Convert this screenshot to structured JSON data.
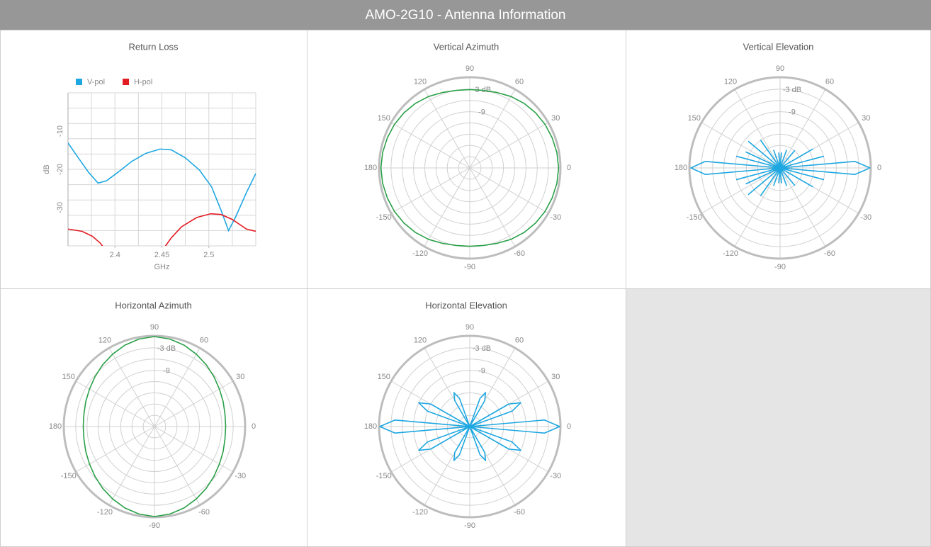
{
  "header": {
    "title": "AMO-2G10 - Antenna Information"
  },
  "chart_data": [
    {
      "type": "line",
      "title": "Return Loss",
      "xlabel": "GHz",
      "ylabel": "dB",
      "xlim": [
        2.35,
        2.55
      ],
      "ylim": [
        -40,
        0
      ],
      "xticks": [
        2.4,
        2.45,
        2.5
      ],
      "yticks": [
        -30,
        -20,
        -10
      ],
      "xgrid": [
        2.35,
        2.375,
        2.4,
        2.425,
        2.45,
        2.475,
        2.5,
        2.525,
        2.55
      ],
      "ygrid": [
        -40,
        -36,
        -32,
        -28,
        -24,
        -20,
        -16,
        -12,
        -8,
        -4,
        0
      ],
      "legend": "top-left",
      "series": [
        {
          "name": "V-pol",
          "color": "#1ea7e1",
          "x": [
            2.35,
            2.361,
            2.372,
            2.382,
            2.391,
            2.403,
            2.418,
            2.433,
            2.448,
            2.46,
            2.475,
            2.49,
            2.503,
            2.513,
            2.521,
            2.529,
            2.54,
            2.55
          ],
          "values": [
            -13.1,
            -17,
            -20.8,
            -23.6,
            -23,
            -20.8,
            -17.9,
            -15.8,
            -14.7,
            -14.9,
            -17,
            -20.2,
            -24.6,
            -30.7,
            -36,
            -32.2,
            -26.1,
            -21.1
          ]
        },
        {
          "name": "H-pol",
          "color": "#e31b23",
          "x": [
            2.35,
            2.365,
            2.376,
            2.384,
            2.39,
            2.42,
            2.451,
            2.46,
            2.471,
            2.487,
            2.502,
            2.513,
            2.525,
            2.54,
            2.55
          ],
          "values": [
            -35.6,
            -36.2,
            -37.5,
            -39.2,
            -41,
            null,
            -41,
            -37.9,
            -35,
            -32.6,
            -31.6,
            -31.8,
            -33.1,
            -35.6,
            -36.2
          ]
        }
      ]
    },
    {
      "type": "polar",
      "title": "Vertical Azimuth",
      "rlim": [
        -24,
        0
      ],
      "rticks": [
        {
          "value": -3,
          "label": "-3 dB"
        },
        -9
      ],
      "rgrid": [
        -21,
        -18,
        -15,
        -12,
        -9,
        -6,
        -3
      ],
      "angle_ticks": [
        0,
        30,
        60,
        90,
        120,
        150,
        180,
        -150,
        -120,
        -90,
        -60,
        -30
      ],
      "theta": [
        0,
        10,
        20,
        30,
        40,
        50,
        60,
        70,
        80,
        90,
        100,
        110,
        120,
        130,
        140,
        150,
        160,
        170,
        180,
        190,
        200,
        210,
        220,
        230,
        240,
        250,
        260,
        270,
        280,
        290,
        300,
        310,
        320,
        330,
        340,
        350,
        360
      ],
      "series": [
        {
          "color": "#2aa048",
          "values": [
            -0.3,
            -0.4,
            -0.6,
            -0.8,
            -1.1,
            -1.5,
            -2,
            -2.6,
            -3,
            -3.1,
            -3,
            -2.6,
            -2,
            -1.5,
            -1.1,
            -0.8,
            -0.6,
            -0.4,
            -0.3,
            -0.4,
            -0.6,
            -0.8,
            -1.1,
            -1.5,
            -2,
            -2.6,
            -3,
            -3.1,
            -3,
            -2.6,
            -2,
            -1.5,
            -1.1,
            -0.8,
            -0.6,
            -0.4,
            -0.3
          ]
        }
      ]
    },
    {
      "type": "polar",
      "title": "Vertical Elevation",
      "rlim": [
        -24,
        0
      ],
      "rticks": [
        {
          "value": -3,
          "label": "-3 dB"
        },
        -9
      ],
      "rgrid": [
        -21,
        -18,
        -15,
        -12,
        -9,
        -6,
        -3
      ],
      "angle_ticks": [
        0,
        30,
        60,
        90,
        120,
        150,
        180,
        -150,
        -120,
        -90,
        -60,
        -30
      ],
      "theta": [
        0,
        5,
        10,
        15,
        20,
        25,
        30,
        35,
        40,
        45,
        50,
        55,
        60,
        65,
        70,
        75,
        80,
        85,
        90,
        95,
        100,
        105,
        110,
        115,
        120,
        125,
        130,
        135,
        140,
        145,
        150,
        155,
        160,
        165,
        170,
        175,
        180,
        185,
        190,
        195,
        200,
        205,
        210,
        215,
        220,
        225,
        230,
        235,
        240,
        245,
        250,
        255,
        260,
        265,
        270,
        275,
        280,
        285,
        290,
        295,
        300,
        305,
        310,
        315,
        320,
        325,
        330,
        335,
        340,
        345,
        350,
        355,
        360
      ],
      "series": [
        {
          "color": "#1ea7e1",
          "values": [
            0,
            -4,
            -24,
            -12,
            -24,
            -24,
            -14,
            -24,
            -24,
            -24,
            -18,
            -24,
            -24,
            -24,
            -19,
            -24,
            -24,
            -20,
            -24,
            -20,
            -24,
            -24,
            -19,
            -24,
            -24,
            -15,
            -24,
            -24,
            -13,
            -24,
            -24,
            -14,
            -24,
            -12,
            -24,
            -4,
            -0.2,
            -4,
            -24,
            -12,
            -24,
            -14,
            -24,
            -24,
            -13,
            -24,
            -24,
            -15,
            -24,
            -24,
            -19,
            -24,
            -24,
            -20,
            -24,
            -20,
            -24,
            -24,
            -19,
            -24,
            -24,
            -24,
            -18,
            -24,
            -24,
            -24,
            -14,
            -24,
            -24,
            -12,
            -24,
            -4,
            0
          ]
        }
      ]
    },
    {
      "type": "polar",
      "title": "Horizontal Azimuth",
      "rlim": [
        -24,
        0
      ],
      "rticks": [
        {
          "value": -3,
          "label": "-3 dB"
        },
        -9
      ],
      "rgrid": [
        -21,
        -18,
        -15,
        -12,
        -9,
        -6,
        -3
      ],
      "angle_ticks": [
        0,
        30,
        60,
        90,
        120,
        150,
        180,
        -150,
        -120,
        -90,
        -60,
        -30
      ],
      "theta": [
        0,
        10,
        20,
        30,
        40,
        50,
        60,
        70,
        80,
        90,
        100,
        110,
        120,
        130,
        140,
        150,
        160,
        170,
        180,
        190,
        200,
        210,
        220,
        230,
        240,
        250,
        260,
        270,
        280,
        290,
        300,
        310,
        320,
        330,
        340,
        350,
        360
      ],
      "series": [
        {
          "color": "#2aa048",
          "values": [
            -5,
            -4.9,
            -4.5,
            -4,
            -3.3,
            -2.5,
            -1.7,
            -0.9,
            -0.3,
            0,
            -0.3,
            -0.9,
            -1.7,
            -2.5,
            -3.3,
            -4,
            -4.5,
            -4.9,
            -5,
            -4.9,
            -4.5,
            -4,
            -3.3,
            -2.5,
            -1.7,
            -0.9,
            -0.3,
            0,
            -0.3,
            -0.9,
            -1.7,
            -2.5,
            -3.3,
            -4,
            -4.5,
            -4.9,
            -5
          ]
        }
      ]
    },
    {
      "type": "polar",
      "title": "Horizontal Elevation",
      "rlim": [
        -24,
        0
      ],
      "rticks": [
        {
          "value": -3,
          "label": "-3 dB"
        },
        -9
      ],
      "rgrid": [
        -21,
        -18,
        -15,
        -12,
        -9,
        -6,
        -3
      ],
      "angle_ticks": [
        0,
        30,
        60,
        90,
        120,
        150,
        180,
        -150,
        -120,
        -90,
        -60,
        -30
      ],
      "theta": [
        0,
        5,
        10,
        15,
        20,
        25,
        30,
        35,
        40,
        45,
        50,
        55,
        60,
        65,
        70,
        75,
        80,
        85,
        90,
        95,
        100,
        105,
        110,
        115,
        120,
        125,
        130,
        135,
        140,
        145,
        150,
        155,
        160,
        165,
        170,
        175,
        180,
        185,
        190,
        195,
        200,
        205,
        210,
        215,
        220,
        225,
        230,
        235,
        240,
        245,
        250,
        255,
        260,
        265,
        270,
        275,
        280,
        285,
        290,
        295,
        300,
        305,
        310,
        315,
        320,
        325,
        330,
        335,
        340,
        345,
        350,
        355,
        360
      ],
      "series": [
        {
          "color": "#1ea7e1",
          "values": [
            0,
            -4,
            -24,
            -24,
            -12,
            -9,
            -12,
            -24,
            -24,
            -24,
            -24,
            -24,
            -16,
            -14,
            -16,
            -24,
            -24,
            -24,
            -24,
            -24,
            -24,
            -24,
            -16,
            -14,
            -16,
            -24,
            -24,
            -24,
            -24,
            -24,
            -12,
            -9,
            -12,
            -24,
            -24,
            -4,
            0,
            -4,
            -24,
            -24,
            -12,
            -9,
            -12,
            -24,
            -24,
            -24,
            -24,
            -24,
            -16,
            -14,
            -16,
            -24,
            -24,
            -24,
            -24,
            -24,
            -24,
            -24,
            -16,
            -14,
            -16,
            -24,
            -24,
            -24,
            -24,
            -24,
            -12,
            -9,
            -12,
            -24,
            -24,
            -4,
            0
          ]
        }
      ]
    }
  ]
}
